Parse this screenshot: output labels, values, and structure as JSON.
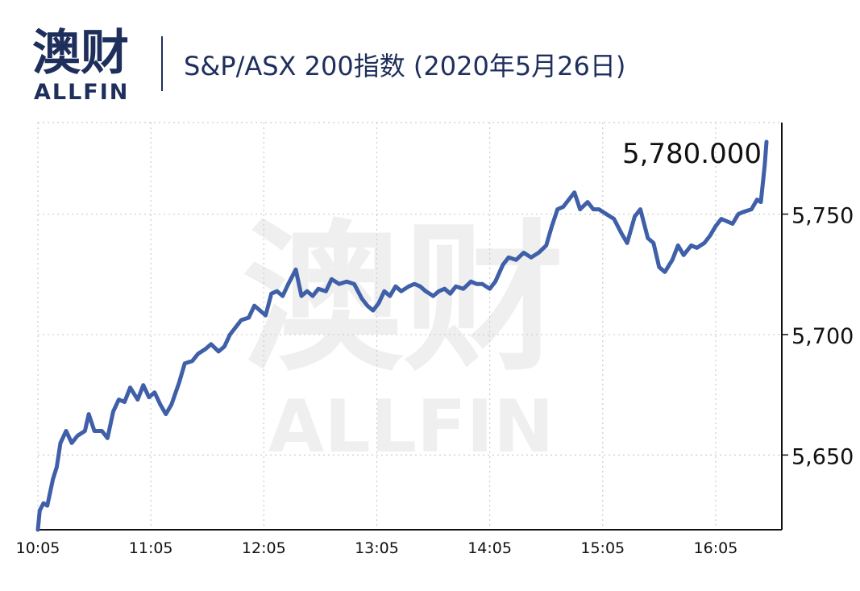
{
  "header": {
    "logo_cn": "澳财",
    "logo_en": "ALLFIN",
    "title": "S&P/ASX 200指数 (2020年5月26日)"
  },
  "watermark": {
    "cn": "澳财",
    "en": "ALLFIN"
  },
  "colors": {
    "line": "#3f5fa8",
    "brand": "#1f2f5c",
    "accent": "#d9366a",
    "grid": "#cccccc"
  },
  "chart_data": {
    "type": "line",
    "title": "S&P/ASX 200指数 (2020年5月26日)",
    "xlabel": "",
    "ylabel": "",
    "x_ticks": [
      "10:05",
      "11:05",
      "12:05",
      "13:05",
      "14:05",
      "15:05",
      "16:05"
    ],
    "y_ticks": [
      5650,
      5700,
      5750
    ],
    "y_tick_labels": [
      "5,650",
      "5,700",
      "5,750"
    ],
    "ylim": [
      5619,
      5788
    ],
    "x_range": [
      "10:05",
      "16:35"
    ],
    "grid": true,
    "last_value_label": "5,780.000",
    "series": [
      {
        "points": [
          [
            "10:05",
            5619
          ],
          [
            "10:06",
            5627
          ],
          [
            "10:08",
            5630
          ],
          [
            "10:10",
            5629
          ],
          [
            "10:13",
            5640
          ],
          [
            "10:15",
            5645
          ],
          [
            "10:17",
            5655
          ],
          [
            "10:20",
            5660
          ],
          [
            "10:23",
            5655
          ],
          [
            "10:26",
            5658
          ],
          [
            "10:30",
            5660
          ],
          [
            "10:32",
            5667
          ],
          [
            "10:35",
            5660
          ],
          [
            "10:39",
            5660
          ],
          [
            "10:42",
            5657
          ],
          [
            "10:45",
            5668
          ],
          [
            "10:48",
            5673
          ],
          [
            "10:51",
            5672
          ],
          [
            "10:54",
            5678
          ],
          [
            "10:58",
            5673
          ],
          [
            "11:01",
            5679
          ],
          [
            "11:04",
            5674
          ],
          [
            "11:07",
            5676
          ],
          [
            "11:10",
            5671
          ],
          [
            "11:13",
            5667
          ],
          [
            "11:16",
            5671
          ],
          [
            "11:20",
            5680
          ],
          [
            "11:23",
            5688
          ],
          [
            "11:27",
            5689
          ],
          [
            "11:30",
            5692
          ],
          [
            "11:34",
            5694
          ],
          [
            "11:37",
            5696
          ],
          [
            "11:41",
            5693
          ],
          [
            "11:44",
            5695
          ],
          [
            "11:47",
            5700
          ],
          [
            "11:50",
            5703
          ],
          [
            "11:53",
            5706
          ],
          [
            "11:57",
            5707
          ],
          [
            "12:00",
            5712
          ],
          [
            "12:03",
            5710
          ],
          [
            "12:06",
            5708
          ],
          [
            "12:09",
            5717
          ],
          [
            "12:12",
            5718
          ],
          [
            "12:15",
            5716
          ],
          [
            "12:18",
            5721
          ],
          [
            "12:22",
            5727
          ],
          [
            "12:25",
            5716
          ],
          [
            "12:28",
            5718
          ],
          [
            "12:31",
            5716
          ],
          [
            "12:34",
            5719
          ],
          [
            "12:38",
            5718
          ],
          [
            "12:41",
            5723
          ],
          [
            "12:45",
            5721
          ],
          [
            "12:49",
            5722
          ],
          [
            "12:53",
            5721
          ],
          [
            "12:57",
            5715
          ],
          [
            "13:00",
            5712
          ],
          [
            "13:03",
            5710
          ],
          [
            "13:06",
            5713
          ],
          [
            "13:09",
            5718
          ],
          [
            "13:12",
            5716
          ],
          [
            "13:15",
            5720
          ],
          [
            "13:18",
            5718
          ],
          [
            "13:22",
            5720
          ],
          [
            "13:25",
            5721
          ],
          [
            "13:28",
            5720
          ],
          [
            "13:31",
            5718
          ],
          [
            "13:35",
            5716
          ],
          [
            "13:38",
            5718
          ],
          [
            "13:41",
            5719
          ],
          [
            "13:44",
            5717
          ],
          [
            "13:47",
            5720
          ],
          [
            "13:51",
            5719
          ],
          [
            "13:55",
            5722
          ],
          [
            "13:58",
            5721
          ],
          [
            "14:01",
            5721
          ],
          [
            "14:05",
            5719
          ],
          [
            "14:08",
            5722
          ],
          [
            "14:12",
            5729
          ],
          [
            "14:15",
            5732
          ],
          [
            "14:19",
            5731
          ],
          [
            "14:23",
            5734
          ],
          [
            "14:27",
            5732
          ],
          [
            "14:31",
            5734
          ],
          [
            "14:35",
            5737
          ],
          [
            "14:38",
            5745
          ],
          [
            "14:41",
            5752
          ],
          [
            "14:44",
            5753
          ],
          [
            "14:47",
            5756
          ],
          [
            "14:50",
            5759
          ],
          [
            "14:53",
            5752
          ],
          [
            "14:57",
            5755
          ],
          [
            "15:00",
            5752
          ],
          [
            "15:03",
            5752
          ],
          [
            "15:07",
            5750
          ],
          [
            "15:11",
            5748
          ],
          [
            "15:15",
            5742
          ],
          [
            "15:18",
            5738
          ],
          [
            "15:22",
            5749
          ],
          [
            "15:25",
            5752
          ],
          [
            "15:29",
            5740
          ],
          [
            "15:32",
            5738
          ],
          [
            "15:35",
            5728
          ],
          [
            "15:38",
            5726
          ],
          [
            "15:42",
            5731
          ],
          [
            "15:45",
            5737
          ],
          [
            "15:48",
            5733
          ],
          [
            "15:52",
            5737
          ],
          [
            "15:55",
            5736
          ],
          [
            "15:59",
            5738
          ],
          [
            "16:02",
            5741
          ],
          [
            "16:05",
            5745
          ],
          [
            "16:08",
            5748
          ],
          [
            "16:11",
            5747
          ],
          [
            "16:14",
            5746
          ],
          [
            "16:17",
            5750
          ],
          [
            "16:20",
            5751
          ],
          [
            "16:24",
            5752
          ],
          [
            "16:27",
            5756
          ],
          [
            "16:29",
            5755
          ],
          [
            "16:31",
            5770
          ],
          [
            "16:32",
            5780
          ]
        ]
      }
    ]
  }
}
